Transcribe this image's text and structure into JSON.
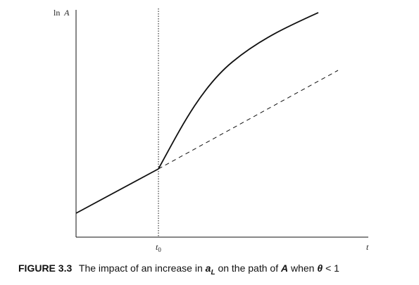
{
  "diagram": {
    "y_axis_label": {
      "prefix": "ln",
      "var": "A"
    },
    "x_axis_label": "t",
    "t0_label": {
      "var": "t",
      "sub": "0"
    }
  },
  "caption": {
    "label": "FIGURE 3.3",
    "text_1": "The impact of an increase in",
    "var_a": "a",
    "var_a_sub": "L",
    "text_2": "on the path of",
    "var_A": "A",
    "text_3": "when",
    "var_theta": "θ",
    "text_4": "< 1"
  }
}
